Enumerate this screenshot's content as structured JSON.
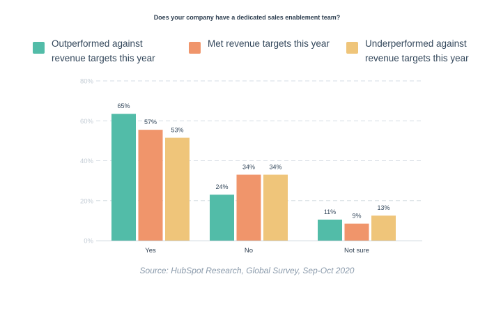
{
  "colors": {
    "series": [
      "#52bca8",
      "#f0956b",
      "#efc57a"
    ],
    "grid": "#d6dde4",
    "tick": "#c3ccd5",
    "axis": "#cbd3db",
    "label": "#33475b"
  },
  "chart_data": {
    "type": "bar",
    "title": "Does your company have a dedicated sales enablement team?",
    "categories": [
      "Yes",
      "No",
      "Not sure"
    ],
    "series": [
      {
        "name": "Outperformed against\nrevenue targets this year",
        "values": [
          65,
          24,
          11
        ]
      },
      {
        "name": "Met revenue targets this year",
        "values": [
          57,
          34,
          9
        ]
      },
      {
        "name": "Underperformed against\nrevenue targets this year",
        "values": [
          53,
          34,
          13
        ]
      }
    ],
    "data_labels": [
      [
        "65%",
        "24%",
        "11%"
      ],
      [
        "57%",
        "34%",
        "9%"
      ],
      [
        "53%",
        "34%",
        "13%"
      ]
    ],
    "plotted_values": [
      [
        63.5,
        23,
        10.5
      ],
      [
        55.5,
        33,
        8.5
      ],
      [
        51.5,
        33,
        12.5
      ]
    ],
    "yticks": [
      "0%",
      "20%",
      "40%",
      "60%",
      "80%"
    ],
    "ylim": [
      0,
      80
    ],
    "xlabel": "",
    "ylabel": "",
    "legend": "top",
    "grid": true
  },
  "source": "Source: HubSpot Research, Global Survey, Sep-Oct 2020"
}
